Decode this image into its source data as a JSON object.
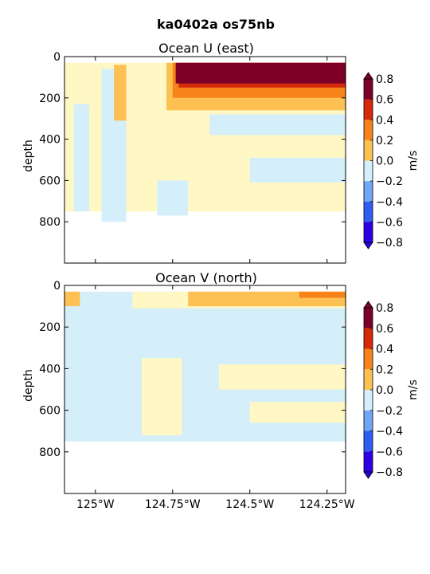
{
  "figure_title": "ka0402a os75nb",
  "colors": {
    "-0.8": "#2d00e6",
    "-0.6": "#2f5df2",
    "-0.4": "#6fa6f5",
    "-0.2": "#d4eefa",
    "0.0": "#fff7c4",
    "0.2": "#fdc153",
    "0.4": "#f7841b",
    "0.6": "#d52a0c",
    "0.8": "#7d0026"
  },
  "chart_data": [
    {
      "type": "heatmap",
      "title": "Ocean U (east)",
      "xlabel": "",
      "ylabel": "depth",
      "xlim": [
        -125.1,
        -124.19
      ],
      "ylim": [
        1000,
        0
      ],
      "xticks": [
        -125.0,
        -124.75,
        -124.5,
        -124.25
      ],
      "xtick_labels": [
        "125°W",
        "124.75°W",
        "124.5°W",
        "124.25°W"
      ],
      "yticks": [
        0,
        200,
        400,
        600,
        800
      ],
      "ytick_labels": [
        "0",
        "200",
        "400",
        "600",
        "800"
      ],
      "show_xtick_labels": false,
      "colorbar": {
        "label": "m/s",
        "levels": [
          -0.8,
          -0.6,
          -0.4,
          -0.2,
          0.0,
          0.2,
          0.4,
          0.6,
          0.8
        ],
        "tick_labels": [
          "−0.8",
          "−0.6",
          "−0.4",
          "−0.2",
          "0.0",
          "0.2",
          "0.4",
          "0.6",
          "0.8"
        ]
      },
      "regions": [
        {
          "value": 0.1,
          "x": [
            -125.1,
            -124.19
          ],
          "depth": [
            30,
            750
          ]
        },
        {
          "value": -0.1,
          "x": [
            -125.07,
            -125.02
          ],
          "depth": [
            230,
            750
          ]
        },
        {
          "value": -0.1,
          "x": [
            -124.98,
            -124.9
          ],
          "depth": [
            60,
            800
          ]
        },
        {
          "value": -0.1,
          "x": [
            -124.63,
            -124.19
          ],
          "depth": [
            280,
            380
          ]
        },
        {
          "value": -0.1,
          "x": [
            -124.5,
            -124.19
          ],
          "depth": [
            490,
            610
          ]
        },
        {
          "value": -0.1,
          "x": [
            -124.8,
            -124.7
          ],
          "depth": [
            600,
            770
          ]
        },
        {
          "value": 0.3,
          "x": [
            -124.94,
            -124.9
          ],
          "depth": [
            40,
            310
          ]
        },
        {
          "value": 0.3,
          "x": [
            -124.77,
            -124.19
          ],
          "depth": [
            30,
            260
          ]
        },
        {
          "value": 0.5,
          "x": [
            -124.75,
            -124.19
          ],
          "depth": [
            30,
            200
          ]
        },
        {
          "value": 0.7,
          "x": [
            -124.73,
            -124.19
          ],
          "depth": [
            30,
            150
          ]
        },
        {
          "value": 0.9,
          "x": [
            -124.74,
            -124.19
          ],
          "depth": [
            30,
            130
          ]
        }
      ]
    },
    {
      "type": "heatmap",
      "title": "Ocean V (north)",
      "xlabel": "",
      "ylabel": "depth",
      "xlim": [
        -125.1,
        -124.19
      ],
      "ylim": [
        1000,
        0
      ],
      "xticks": [
        -125.0,
        -124.75,
        -124.5,
        -124.25
      ],
      "xtick_labels": [
        "125°W",
        "124.75°W",
        "124.5°W",
        "124.25°W"
      ],
      "yticks": [
        0,
        200,
        400,
        600,
        800
      ],
      "ytick_labels": [
        "0",
        "200",
        "400",
        "600",
        "800"
      ],
      "show_xtick_labels": true,
      "colorbar": {
        "label": "m/s",
        "levels": [
          -0.8,
          -0.6,
          -0.4,
          -0.2,
          0.0,
          0.2,
          0.4,
          0.6,
          0.8
        ],
        "tick_labels": [
          "−0.8",
          "−0.6",
          "−0.4",
          "−0.2",
          "0.0",
          "0.2",
          "0.4",
          "0.6",
          "0.8"
        ]
      },
      "regions": [
        {
          "value": -0.1,
          "x": [
            -125.1,
            -124.19
          ],
          "depth": [
            30,
            750
          ]
        },
        {
          "value": 0.1,
          "x": [
            -124.88,
            -124.19
          ],
          "depth": [
            30,
            110
          ]
        },
        {
          "value": 0.1,
          "x": [
            -124.6,
            -124.19
          ],
          "depth": [
            380,
            500
          ]
        },
        {
          "value": 0.1,
          "x": [
            -124.5,
            -124.19
          ],
          "depth": [
            560,
            660
          ]
        },
        {
          "value": 0.1,
          "x": [
            -124.85,
            -124.72
          ],
          "depth": [
            350,
            720
          ]
        },
        {
          "value": 0.3,
          "x": [
            -124.7,
            -124.19
          ],
          "depth": [
            30,
            100
          ]
        },
        {
          "value": 0.3,
          "x": [
            -125.1,
            -125.05
          ],
          "depth": [
            30,
            100
          ]
        },
        {
          "value": 0.5,
          "x": [
            -124.34,
            -124.19
          ],
          "depth": [
            30,
            60
          ]
        }
      ]
    }
  ]
}
